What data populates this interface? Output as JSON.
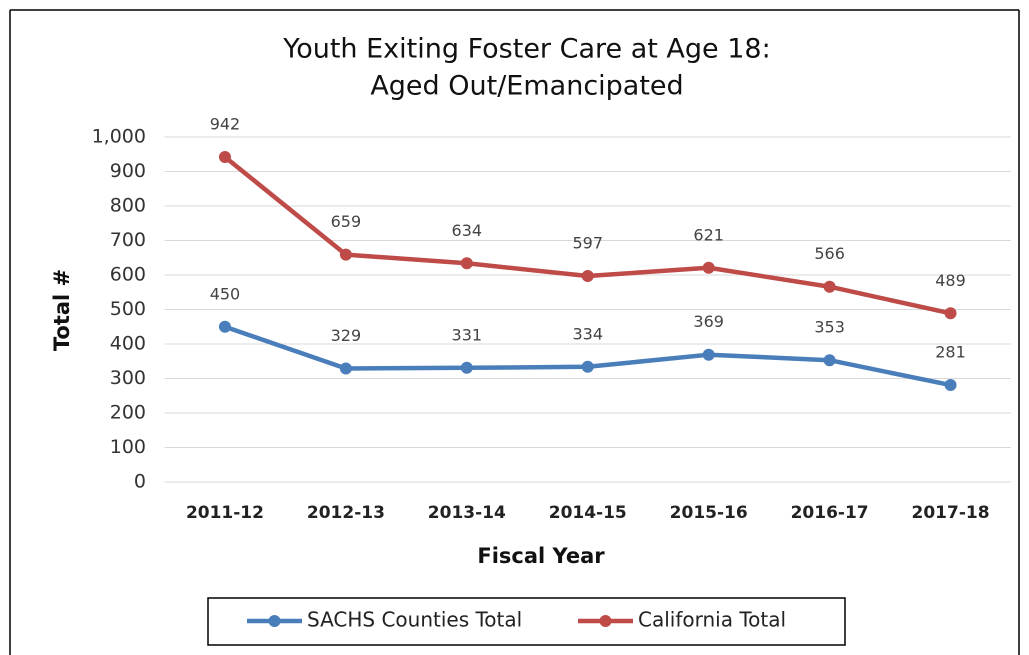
{
  "chart_data": {
    "type": "line",
    "title": [
      "Youth Exiting Foster Care at Age 18:",
      "Aged Out/Emancipated"
    ],
    "x_label": "Fiscal Year",
    "y_label": "Total #",
    "categories": [
      "2011-12",
      "2012-13",
      "2013-14",
      "2014-15",
      "2015-16",
      "2016-17",
      "2017-18"
    ],
    "series": [
      {
        "name": "SACHS Counties Total",
        "color": "#4a7ebb",
        "values": [
          450,
          329,
          331,
          334,
          369,
          353,
          281
        ]
      },
      {
        "name": "California Total",
        "color": "#be4b48",
        "values": [
          942,
          659,
          634,
          597,
          621,
          566,
          489
        ]
      }
    ],
    "ylim": [
      0,
      1000
    ],
    "yticks": [
      0,
      100,
      200,
      300,
      400,
      500,
      600,
      700,
      800,
      900,
      {
        "value": 1000,
        "label": "1,000"
      }
    ],
    "grid": true,
    "legend": "bottom"
  }
}
